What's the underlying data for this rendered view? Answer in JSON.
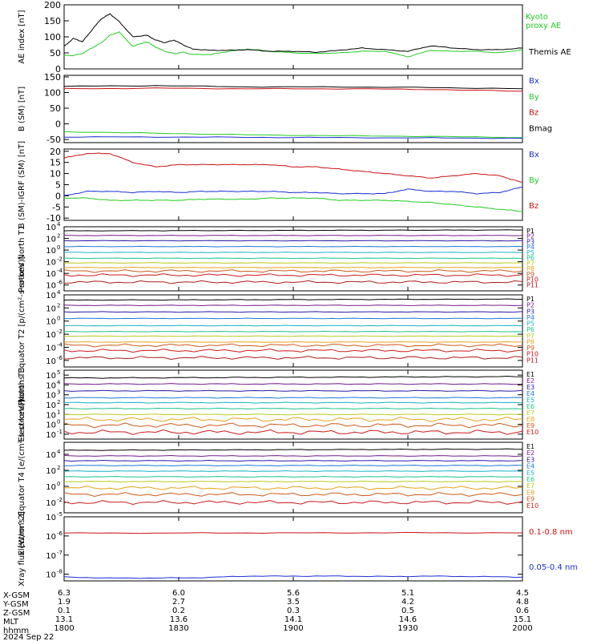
{
  "colors": {
    "black": "#000000",
    "green": "#22cc22",
    "blue": "#1a2fd6",
    "red": "#cc1111",
    "p": [
      "#000000",
      "#7a1a8c",
      "#2a1aa8",
      "#1a7ad6",
      "#1ab4c4",
      "#1ac48a",
      "#b8cc1a",
      "#e8a21a",
      "#cc5a1a",
      "#cc1a1a",
      "#b01a1a"
    ],
    "e": [
      "#000000",
      "#7a1a8c",
      "#2a1aa8",
      "#1a7ad6",
      "#1ab4c4",
      "#1ac48a",
      "#b8cc1a",
      "#e8a21a",
      "#cc5a1a",
      "#cc1a1a"
    ]
  },
  "footer": {
    "row_labels": [
      "X-GSM",
      "Y-GSM",
      "Z-GSM",
      "MLT",
      "hhmm"
    ],
    "columns": [
      {
        "x": "6.3",
        "y": "1.9",
        "z": "0.1",
        "mlt": "13.1",
        "hhmm": "1800"
      },
      {
        "x": "6.0",
        "y": "2.7",
        "z": "0.2",
        "mlt": "13.6",
        "hhmm": "1830"
      },
      {
        "x": "5.6",
        "y": "3.5",
        "z": "0.3",
        "mlt": "14.1",
        "hhmm": "1900"
      },
      {
        "x": "5.1",
        "y": "4.2",
        "z": "0.5",
        "mlt": "14.6",
        "hhmm": "1930"
      },
      {
        "x": "4.5",
        "y": "4.8",
        "z": "0.6",
        "mlt": "15.1",
        "hhmm": "2000"
      }
    ],
    "date": "2024 Sep 22"
  },
  "chart_data": [
    {
      "type": "line",
      "ylabel": "AE index [nT]",
      "yticks": [
        "200",
        "150",
        "100",
        "50",
        "0"
      ],
      "ylim": [
        0,
        200
      ],
      "legend": [
        {
          "name": "Kyoto proxy AE",
          "color": "green"
        },
        {
          "name": "Themis AE",
          "color": "black"
        }
      ],
      "series": [
        {
          "name": "Kyoto proxy AE",
          "color": "green",
          "t": [
            0,
            2,
            4,
            6,
            8,
            10,
            12,
            15,
            18,
            20,
            22,
            24,
            26,
            28,
            32,
            36,
            40,
            45,
            50,
            55,
            60,
            65,
            70,
            75,
            80,
            85,
            90,
            95,
            100
          ],
          "values": [
            42,
            42,
            48,
            65,
            80,
            105,
            115,
            70,
            85,
            68,
            55,
            48,
            52,
            45,
            45,
            55,
            62,
            55,
            50,
            48,
            50,
            55,
            55,
            38,
            58,
            55,
            55,
            50,
            60
          ]
        },
        {
          "name": "Themis AE",
          "color": "black",
          "t": [
            0,
            2,
            4,
            6,
            8,
            10,
            12,
            15,
            18,
            20,
            22,
            24,
            26,
            28,
            32,
            36,
            40,
            45,
            50,
            55,
            60,
            65,
            70,
            75,
            80,
            85,
            90,
            95,
            100
          ],
          "values": [
            70,
            95,
            85,
            120,
            155,
            172,
            148,
            100,
            105,
            90,
            82,
            90,
            75,
            62,
            58,
            58,
            60,
            55,
            55,
            52,
            58,
            65,
            60,
            55,
            72,
            65,
            60,
            60,
            65
          ]
        }
      ]
    },
    {
      "type": "line",
      "ylabel": "B (SM) [nT]",
      "yticks": [
        "150",
        "100",
        "50",
        "0",
        "-50"
      ],
      "ylim": [
        -60,
        155
      ],
      "legend": [
        {
          "name": "Bx",
          "color": "blue"
        },
        {
          "name": "By",
          "color": "green"
        },
        {
          "name": "Bz",
          "color": "red"
        },
        {
          "name": "Bmag",
          "color": "black"
        }
      ],
      "series": [
        {
          "name": "Bmag",
          "color": "black",
          "t": [
            0,
            20,
            40,
            60,
            80,
            100
          ],
          "values": [
            120,
            122,
            118,
            118,
            116,
            112
          ]
        },
        {
          "name": "Bz",
          "color": "red",
          "t": [
            0,
            20,
            40,
            60,
            80,
            100
          ],
          "values": [
            112,
            114,
            112,
            112,
            110,
            104
          ]
        },
        {
          "name": "By",
          "color": "green",
          "t": [
            0,
            20,
            40,
            60,
            80,
            100
          ],
          "values": [
            -25,
            -30,
            -35,
            -38,
            -40,
            -44
          ]
        },
        {
          "name": "Bx",
          "color": "blue",
          "t": [
            0,
            20,
            40,
            60,
            80,
            100
          ],
          "values": [
            -42,
            -42,
            -43,
            -44,
            -45,
            -46
          ]
        }
      ]
    },
    {
      "type": "line",
      "ylabel": "B (SM)-IGRF (SM) [nT]",
      "yticks": [
        "20",
        "15",
        "10",
        "5",
        "0",
        "-5",
        "-10"
      ],
      "ylim": [
        -11,
        21
      ],
      "legend": [
        {
          "name": "Bx",
          "color": "blue"
        },
        {
          "name": "By",
          "color": "green"
        },
        {
          "name": "Bz",
          "color": "red"
        }
      ],
      "series": [
        {
          "name": "Bz",
          "color": "red",
          "t": [
            0,
            5,
            10,
            15,
            20,
            25,
            30,
            35,
            40,
            45,
            50,
            55,
            60,
            65,
            70,
            75,
            80,
            85,
            90,
            95,
            100
          ],
          "values": [
            17,
            19,
            19,
            15,
            13,
            14,
            14,
            14,
            14,
            14,
            13,
            13,
            12,
            11,
            10,
            9,
            8,
            9,
            10,
            9,
            6
          ]
        },
        {
          "name": "Bx",
          "color": "blue",
          "t": [
            0,
            5,
            10,
            15,
            20,
            25,
            30,
            35,
            40,
            45,
            50,
            55,
            60,
            65,
            70,
            75,
            80,
            85,
            90,
            95,
            100
          ],
          "values": [
            0,
            2,
            2,
            1.5,
            2,
            1.5,
            2,
            2,
            2,
            2,
            1.5,
            1.5,
            1,
            1,
            1,
            3,
            2,
            2,
            1,
            1.5,
            4
          ]
        },
        {
          "name": "By",
          "color": "green",
          "t": [
            0,
            5,
            10,
            15,
            20,
            25,
            30,
            35,
            40,
            45,
            50,
            55,
            60,
            65,
            70,
            75,
            80,
            85,
            90,
            95,
            100
          ],
          "values": [
            -1,
            -1,
            -2,
            -2,
            -2,
            -2,
            -1.5,
            -1.5,
            -1.5,
            -1,
            -1,
            -1,
            -2,
            -2,
            -2,
            -2.5,
            -3,
            -4,
            -5,
            -6,
            -7
          ]
        }
      ]
    },
    {
      "type": "line",
      "log": true,
      "ylabel": "Protons North T1",
      "decades": [
        4,
        2,
        0,
        -2,
        -4,
        -6
      ],
      "ylim_exp": [
        -7,
        4
      ],
      "legend": [
        "P1",
        "P2",
        "P3",
        "P4",
        "P5",
        "P6",
        "P7",
        "P8",
        "P9",
        "P10",
        "P11"
      ],
      "levels_exp": [
        3.3,
        2.5,
        1.6,
        0.6,
        -0.4,
        -1.4,
        -2.2,
        -3.0,
        -3.6,
        -4.3,
        -5.5
      ]
    },
    {
      "type": "line",
      "log": true,
      "ylabel": "Protons Equator T2 [p/(cm²-s-sr-keV)]",
      "decades": [
        4,
        2,
        0,
        -2,
        -4,
        -6
      ],
      "ylim_exp": [
        -7,
        4
      ],
      "legend": [
        "P1",
        "P2",
        "P3",
        "P4",
        "P5",
        "P6",
        "P7",
        "P8",
        "P9",
        "P10",
        "P11"
      ],
      "levels_exp": [
        3.2,
        2.4,
        1.4,
        0.4,
        -0.7,
        -1.6,
        -2.3,
        -3.2,
        -3.7,
        -4.5,
        -5.6
      ]
    },
    {
      "type": "line",
      "log": true,
      "ylabel": "Electrons North T3",
      "decades": [
        5,
        4,
        3,
        2,
        1,
        0,
        -1
      ],
      "ylim_exp": [
        -1.5,
        5.5
      ],
      "legend": [
        "E1",
        "E2",
        "E3",
        "E4",
        "E5",
        "E6",
        "E7",
        "E8",
        "E9",
        "E10"
      ],
      "levels_exp": [
        4.7,
        4.1,
        3.4,
        2.7,
        2.2,
        1.6,
        1.0,
        0.5,
        -0.1,
        -0.8
      ]
    },
    {
      "type": "line",
      "log": true,
      "ylabel": "Electrons Equator T4 [e/(cm²-s-sr-keV)]",
      "decades": [
        4,
        2,
        0,
        -2
      ],
      "ylim_exp": [
        -3.3,
        5.5
      ],
      "legend": [
        "E1",
        "E2",
        "E3",
        "E4",
        "E5",
        "E6",
        "E7",
        "E8",
        "E9",
        "E10"
      ],
      "levels_exp": [
        4.5,
        3.8,
        3.2,
        2.6,
        1.9,
        1.2,
        0.6,
        -0.2,
        -1.0,
        -2.0
      ]
    },
    {
      "type": "line",
      "log": true,
      "ylabel": "Xray flux [W/m^2]",
      "decades": [
        -5,
        -6,
        -7,
        -8
      ],
      "ylim_exp": [
        -8.35,
        -5
      ],
      "legend": [
        {
          "name": "0.1-0.8 nm",
          "color": "red"
        },
        {
          "name": "0.05-0.4 nm",
          "color": "blue"
        }
      ],
      "series": [
        {
          "name": "0.1-0.8 nm",
          "color": "red",
          "t": [
            0,
            20,
            40,
            60,
            80,
            100
          ],
          "values_exp": [
            -5.85,
            -5.85,
            -5.84,
            -5.84,
            -5.83,
            -5.84
          ]
        },
        {
          "name": "0.05-0.4 nm",
          "color": "blue",
          "t": [
            0,
            10,
            20,
            30,
            40,
            50,
            60,
            70,
            80,
            90,
            100
          ],
          "values_exp": [
            -8.15,
            -8.2,
            -8.2,
            -8.18,
            -8.1,
            -8.1,
            -8.1,
            -8.12,
            -8.1,
            -8.12,
            -8.15
          ]
        }
      ]
    }
  ]
}
